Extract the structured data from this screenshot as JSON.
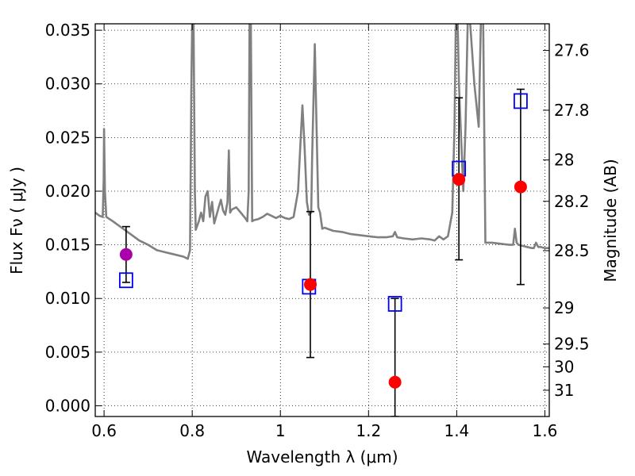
{
  "chart_data": {
    "type": "scatter",
    "xlabel": "Wavelength  λ (μm)",
    "ylabel": "Flux  Fν  ( μJy )",
    "y2label": "Magnitude (AB)",
    "xlim": [
      0.58,
      1.61
    ],
    "ylim": [
      -0.001,
      0.0356
    ],
    "grid": true,
    "x_ticks": [
      {
        "value": 0.6,
        "label": "0.6"
      },
      {
        "value": 0.8,
        "label": "0.8"
      },
      {
        "value": 1.0,
        "label": "1"
      },
      {
        "value": 1.2,
        "label": "1.2"
      },
      {
        "value": 1.4,
        "label": "1.4"
      },
      {
        "value": 1.6,
        "label": "1.6"
      }
    ],
    "y_ticks": [
      {
        "value": 0.0,
        "label": "0.000"
      },
      {
        "value": 0.005,
        "label": "0.005"
      },
      {
        "value": 0.01,
        "label": "0.010"
      },
      {
        "value": 0.015,
        "label": "0.015"
      },
      {
        "value": 0.02,
        "label": "0.020"
      },
      {
        "value": 0.025,
        "label": "0.025"
      },
      {
        "value": 0.03,
        "label": "0.030"
      },
      {
        "value": 0.035,
        "label": "0.035"
      }
    ],
    "mag_ticks": [
      {
        "mag": 27.6,
        "label": "27.6"
      },
      {
        "mag": 27.8,
        "label": "27.8"
      },
      {
        "mag": 28.0,
        "label": "28"
      },
      {
        "mag": 28.2,
        "label": "28.2"
      },
      {
        "mag": 28.5,
        "label": "28.5"
      },
      {
        "mag": 29.0,
        "label": "29"
      },
      {
        "mag": 29.5,
        "label": "29.5"
      },
      {
        "mag": 30.0,
        "label": "30"
      },
      {
        "mag": 31.0,
        "label": "31"
      }
    ],
    "colors": {
      "sed": "#808080",
      "observed": "#ff0000",
      "observed_alt": "#aa00aa",
      "model": "#0000ff",
      "errorbar": "#000000",
      "grid": "#000000"
    },
    "model_sed": [
      [
        0.58,
        0.018
      ],
      [
        0.59,
        0.0177
      ],
      [
        0.597,
        0.0176
      ],
      [
        0.599,
        0.021
      ],
      [
        0.6,
        0.0258
      ],
      [
        0.602,
        0.02
      ],
      [
        0.605,
        0.0176
      ],
      [
        0.62,
        0.0172
      ],
      [
        0.64,
        0.0166
      ],
      [
        0.66,
        0.016
      ],
      [
        0.68,
        0.0154
      ],
      [
        0.7,
        0.015
      ],
      [
        0.72,
        0.0145
      ],
      [
        0.74,
        0.0143
      ],
      [
        0.76,
        0.0141
      ],
      [
        0.78,
        0.0139
      ],
      [
        0.79,
        0.0137
      ],
      [
        0.795,
        0.0145
      ],
      [
        0.798,
        0.03
      ],
      [
        0.8,
        0.036
      ],
      [
        0.803,
        0.036
      ],
      [
        0.806,
        0.02
      ],
      [
        0.808,
        0.0164
      ],
      [
        0.815,
        0.0172
      ],
      [
        0.82,
        0.018
      ],
      [
        0.825,
        0.0172
      ],
      [
        0.83,
        0.0195
      ],
      [
        0.835,
        0.02
      ],
      [
        0.84,
        0.0176
      ],
      [
        0.845,
        0.019
      ],
      [
        0.85,
        0.017
      ],
      [
        0.86,
        0.0185
      ],
      [
        0.865,
        0.0192
      ],
      [
        0.87,
        0.0182
      ],
      [
        0.875,
        0.0178
      ],
      [
        0.88,
        0.019
      ],
      [
        0.883,
        0.0238
      ],
      [
        0.886,
        0.018
      ],
      [
        0.89,
        0.0183
      ],
      [
        0.9,
        0.0185
      ],
      [
        0.91,
        0.018
      ],
      [
        0.92,
        0.0175
      ],
      [
        0.925,
        0.0172
      ],
      [
        0.928,
        0.02
      ],
      [
        0.93,
        0.036
      ],
      [
        0.933,
        0.036
      ],
      [
        0.936,
        0.0172
      ],
      [
        0.94,
        0.0173
      ],
      [
        0.95,
        0.0174
      ],
      [
        0.96,
        0.0176
      ],
      [
        0.97,
        0.0179
      ],
      [
        0.98,
        0.0177
      ],
      [
        0.99,
        0.0175
      ],
      [
        1.0,
        0.0177
      ],
      [
        1.01,
        0.0175
      ],
      [
        1.02,
        0.0174
      ],
      [
        1.03,
        0.0176
      ],
      [
        1.04,
        0.02
      ],
      [
        1.045,
        0.024
      ],
      [
        1.05,
        0.028
      ],
      [
        1.055,
        0.024
      ],
      [
        1.06,
        0.019
      ],
      [
        1.065,
        0.0178
      ],
      [
        1.07,
        0.018
      ],
      [
        1.072,
        0.023
      ],
      [
        1.078,
        0.0337
      ],
      [
        1.082,
        0.026
      ],
      [
        1.086,
        0.0185
      ],
      [
        1.09,
        0.018
      ],
      [
        1.095,
        0.0165
      ],
      [
        1.1,
        0.0166
      ],
      [
        1.12,
        0.0163
      ],
      [
        1.14,
        0.0162
      ],
      [
        1.16,
        0.016
      ],
      [
        1.18,
        0.0159
      ],
      [
        1.2,
        0.0158
      ],
      [
        1.22,
        0.0157
      ],
      [
        1.24,
        0.0157
      ],
      [
        1.255,
        0.0158
      ],
      [
        1.26,
        0.0162
      ],
      [
        1.265,
        0.0157
      ],
      [
        1.28,
        0.0156
      ],
      [
        1.3,
        0.0155
      ],
      [
        1.32,
        0.0156
      ],
      [
        1.34,
        0.0155
      ],
      [
        1.35,
        0.0154
      ],
      [
        1.36,
        0.0158
      ],
      [
        1.37,
        0.0155
      ],
      [
        1.38,
        0.0158
      ],
      [
        1.39,
        0.018
      ],
      [
        1.395,
        0.026
      ],
      [
        1.398,
        0.036
      ],
      [
        1.402,
        0.036
      ],
      [
        1.405,
        0.03
      ],
      [
        1.41,
        0.025
      ],
      [
        1.415,
        0.02
      ],
      [
        1.42,
        0.026
      ],
      [
        1.425,
        0.036
      ],
      [
        1.43,
        0.036
      ],
      [
        1.44,
        0.03
      ],
      [
        1.45,
        0.026
      ],
      [
        1.455,
        0.036
      ],
      [
        1.46,
        0.036
      ],
      [
        1.465,
        0.0152
      ],
      [
        1.48,
        0.0152
      ],
      [
        1.5,
        0.0151
      ],
      [
        1.52,
        0.015
      ],
      [
        1.528,
        0.015
      ],
      [
        1.532,
        0.0165
      ],
      [
        1.536,
        0.0152
      ],
      [
        1.54,
        0.015
      ],
      [
        1.55,
        0.0149
      ],
      [
        1.56,
        0.0148
      ],
      [
        1.57,
        0.0147
      ],
      [
        1.575,
        0.0147
      ],
      [
        1.58,
        0.0152
      ],
      [
        1.585,
        0.0148
      ],
      [
        1.59,
        0.0148
      ],
      [
        1.6,
        0.0147
      ],
      [
        1.61,
        0.0147
      ]
    ],
    "observed": [
      {
        "x": 0.65,
        "y": 0.0141,
        "yerr_low": 0.0115,
        "yerr_high": 0.0167,
        "color": "#aa00aa"
      },
      {
        "x": 1.068,
        "y": 0.0113,
        "yerr_low": 0.0045,
        "yerr_high": 0.0181,
        "color": "#ff0000"
      },
      {
        "x": 1.26,
        "y": 0.0022,
        "yerr_low": -0.001,
        "yerr_high": 0.01,
        "color": "#ff0000"
      },
      {
        "x": 1.405,
        "y": 0.0211,
        "yerr_low": 0.0136,
        "yerr_high": 0.0287,
        "color": "#ff0000"
      },
      {
        "x": 1.545,
        "y": 0.0204,
        "yerr_low": 0.0113,
        "yerr_high": 0.0295,
        "color": "#ff0000"
      }
    ],
    "model_photometry": [
      {
        "x": 0.65,
        "y": 0.0117
      },
      {
        "x": 1.065,
        "y": 0.0111
      },
      {
        "x": 1.26,
        "y": 0.0095
      },
      {
        "x": 1.405,
        "y": 0.0221
      },
      {
        "x": 1.545,
        "y": 0.0284
      }
    ]
  }
}
